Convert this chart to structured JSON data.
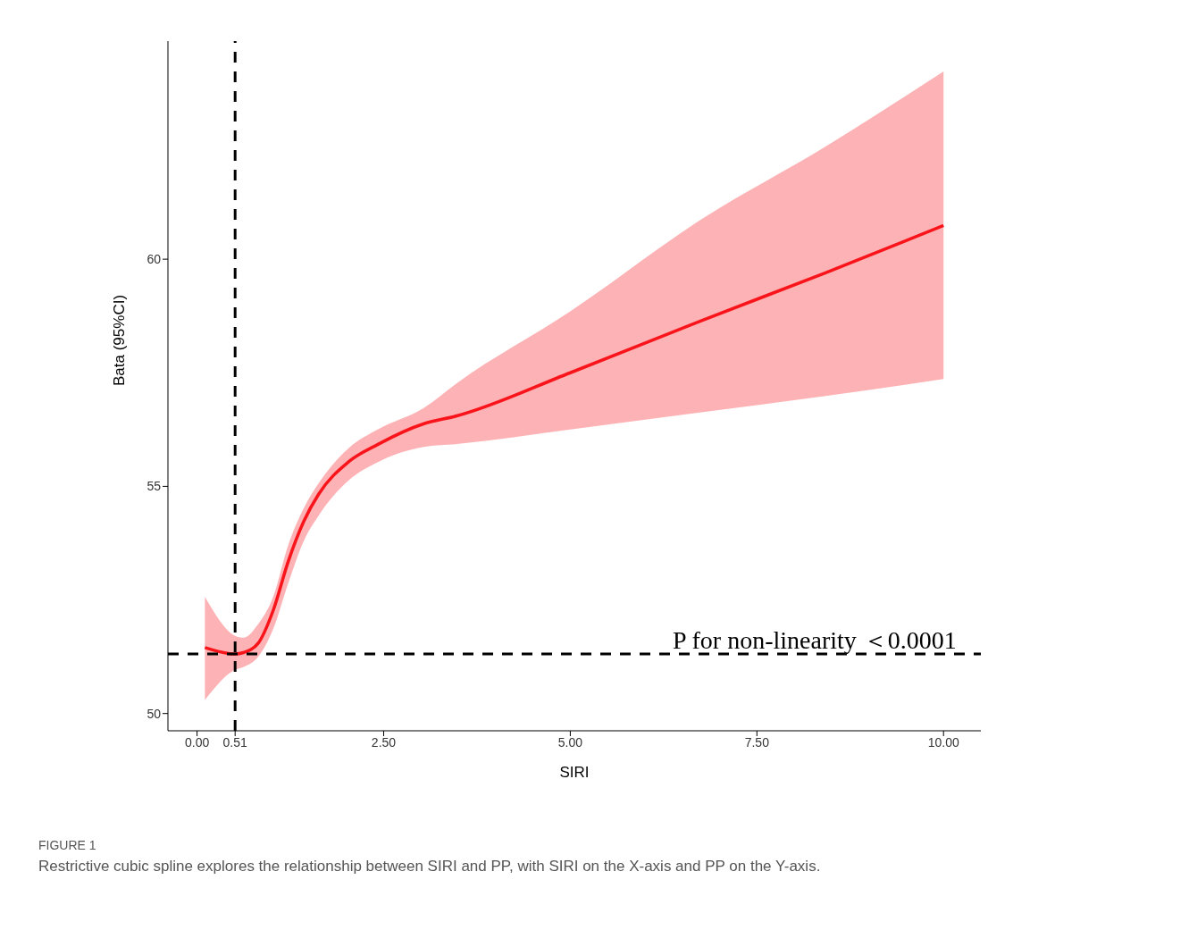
{
  "chart_data": {
    "type": "line",
    "xlabel": "SIRI",
    "ylabel": "Bata (95%CI)",
    "x": [
      0.105,
      0.51,
      0.62,
      0.82,
      1.02,
      1.22,
      1.43,
      1.63,
      2.03,
      2.43,
      3.04,
      3.48,
      5.0,
      6.76,
      8.42,
      10.0
    ],
    "series": [
      {
        "color": "#f8141a",
        "values": [
          51.45,
          51.31,
          51.34,
          51.55,
          52.27,
          53.34,
          54.23,
          54.83,
          55.54,
          55.93,
          56.38,
          56.55,
          57.5,
          58.65,
          59.7,
          60.74
        ],
        "lower": [
          50.3,
          50.96,
          51.02,
          51.25,
          51.86,
          52.86,
          53.8,
          54.36,
          55.13,
          55.54,
          55.87,
          55.93,
          56.25,
          56.63,
          56.99,
          57.36
        ],
        "upper": [
          52.57,
          51.71,
          51.67,
          51.97,
          52.57,
          53.7,
          54.52,
          55.07,
          55.84,
          56.26,
          56.73,
          57.27,
          58.85,
          60.88,
          62.48,
          64.13
        ]
      }
    ],
    "xlim": [
      -0.39,
      10.5
    ],
    "ylim": [
      49.62,
      64.8
    ],
    "xticks": [
      {
        "value": 0,
        "label": "0.00"
      },
      {
        "value": 0.51,
        "label": "0.51"
      },
      {
        "value": 2.5,
        "label": "2.50"
      },
      {
        "value": 5,
        "label": "5.00"
      },
      {
        "value": 7.5,
        "label": "7.50"
      },
      {
        "value": 10,
        "label": "10.00"
      }
    ],
    "yticks": [
      50,
      55,
      60
    ],
    "ref_lines": [
      {
        "axis": "x",
        "value": 0.51,
        "color": "#000000",
        "line_style": "dashed"
      },
      {
        "axis": "y",
        "value": 51.31,
        "color": "#000000",
        "line_style": "dashed"
      }
    ],
    "annotations": [
      "P for non-linearity ＜0.0001",
      "FIGURE 1",
      "Restrictive cubic spline explores the relationship between SIRI and PP, with SIRI on the X-axis and PP on the Y-axis."
    ],
    "grid": false,
    "legend": false,
    "marker": "none",
    "line_style": "solid"
  }
}
